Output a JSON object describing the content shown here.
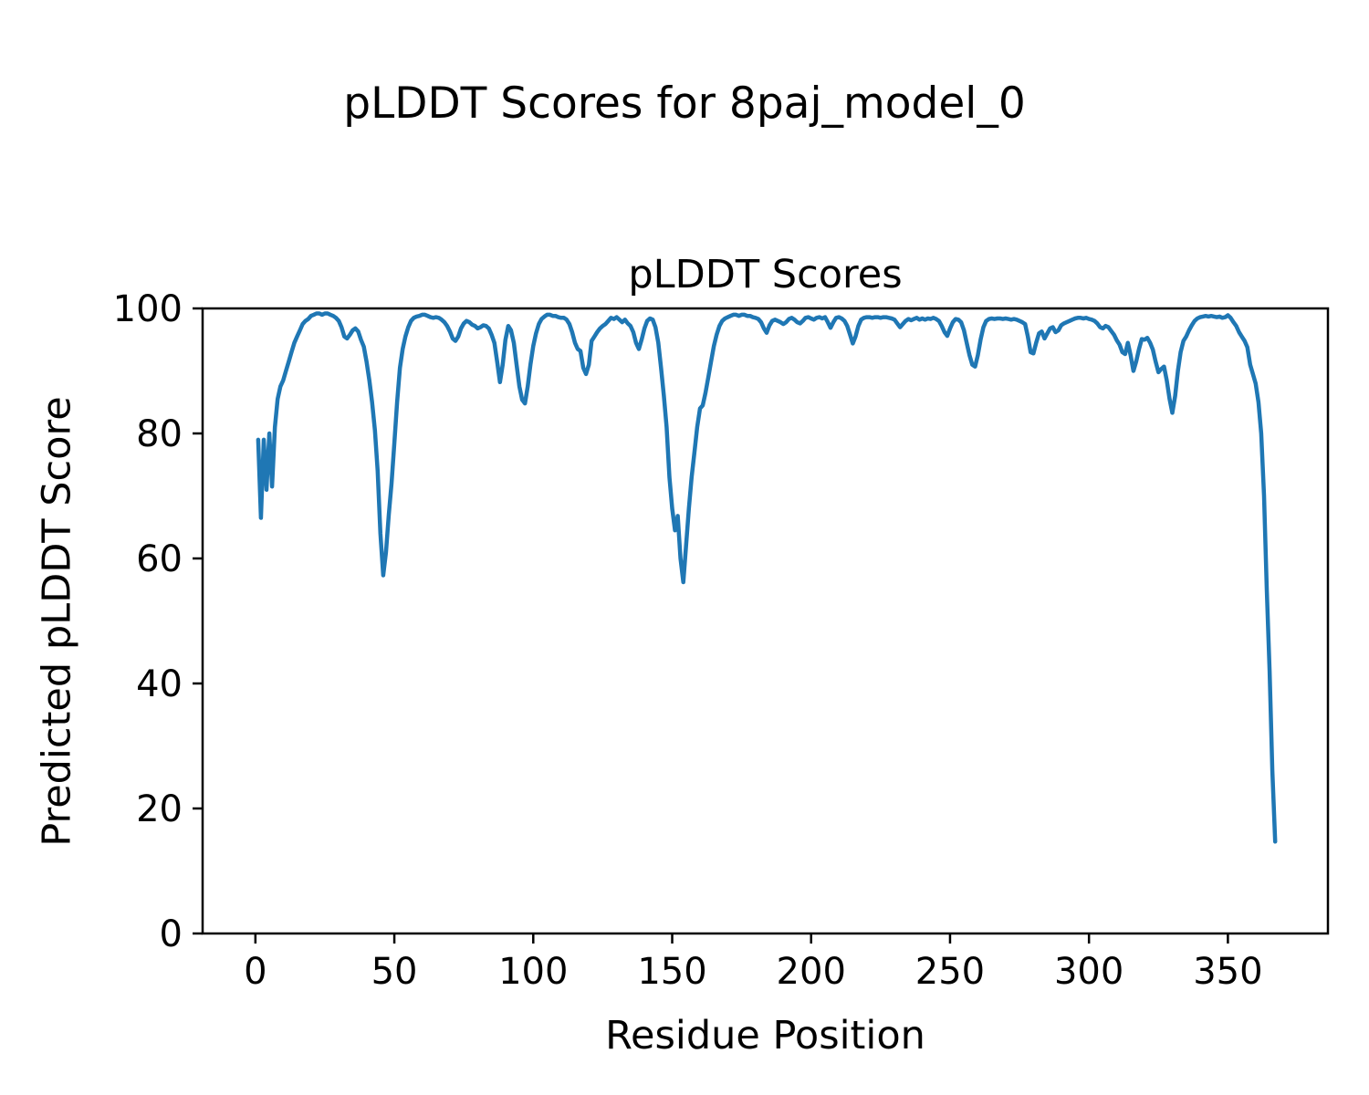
{
  "figure": {
    "suptitle": "pLDDT Scores for 8paj_model_0",
    "background_color": "#ffffff",
    "text_color": "#000000"
  },
  "chart_data": {
    "type": "line",
    "title": "pLDDT Scores",
    "xlabel": "Residue Position",
    "ylabel": "Predicted pLDDT Score",
    "xlim": [
      -19,
      386
    ],
    "ylim": [
      0,
      100
    ],
    "x_ticks": [
      0,
      50,
      100,
      150,
      200,
      250,
      300,
      350
    ],
    "y_ticks": [
      0,
      20,
      40,
      60,
      80,
      100
    ],
    "grid": false,
    "legend": "none",
    "line_color": "#1f77b4",
    "line_width": 4.5,
    "series": [
      {
        "name": "pLDDT",
        "x_start": 1,
        "x_step": 1,
        "values": [
          79,
          66.5,
          79,
          71,
          80,
          71.5,
          81,
          85.5,
          87.5,
          88.5,
          90,
          91.5,
          93,
          94.5,
          95.5,
          96.5,
          97.5,
          98,
          98.3,
          98.8,
          99,
          99.2,
          99.2,
          99,
          99.2,
          99.2,
          99,
          98.8,
          98.5,
          98,
          97,
          95.5,
          95.2,
          95.8,
          96.5,
          96.8,
          96.3,
          95,
          93.9,
          91.5,
          88.5,
          85,
          80.5,
          74,
          64,
          57.3,
          61,
          67,
          72,
          78.5,
          85,
          90.5,
          93.5,
          95.5,
          97,
          98,
          98.5,
          98.7,
          98.8,
          99,
          99,
          98.8,
          98.6,
          98.5,
          98.6,
          98.5,
          98.2,
          97.8,
          97.2,
          96.3,
          95.2,
          94.8,
          95.5,
          96.8,
          97.6,
          98,
          97.8,
          97.4,
          97.2,
          96.8,
          97,
          97.3,
          97.2,
          96.8,
          95.8,
          94.5,
          91.5,
          88.2,
          91,
          95,
          97.2,
          96.5,
          94.5,
          91,
          87.5,
          85.4,
          84.8,
          87.5,
          91,
          94,
          96,
          97.5,
          98.3,
          98.7,
          99,
          99,
          98.8,
          98.8,
          98.6,
          98.5,
          98.5,
          98.2,
          97.5,
          96.2,
          94.5,
          93.5,
          93.2,
          90.5,
          89.5,
          91,
          94.8,
          95.5,
          96.2,
          96.8,
          97.2,
          97.5,
          98,
          98.5,
          98.3,
          98.6,
          98.2,
          97.8,
          98.2,
          97.6,
          97.2,
          96.2,
          94.5,
          93.5,
          95,
          96.8,
          98,
          98.4,
          98.2,
          97,
          94.5,
          90.5,
          86,
          81,
          73,
          68,
          64.5,
          66.8,
          60,
          56.2,
          62,
          68,
          73,
          77,
          81,
          84,
          84.5,
          86.5,
          89,
          91.5,
          94,
          95.8,
          97.2,
          98,
          98.4,
          98.6,
          98.8,
          99,
          99,
          98.8,
          99,
          99,
          98.8,
          98.8,
          98.6,
          98.5,
          98.3,
          97.8,
          96.8,
          96.1,
          97.3,
          98,
          98.2,
          98,
          97.8,
          97.5,
          97.8,
          98.3,
          98.5,
          98.2,
          97.8,
          97.6,
          98,
          98.5,
          98.6,
          98.4,
          98.2,
          98.5,
          98.6,
          98.4,
          98.6,
          97.8,
          96.9,
          97.8,
          98.5,
          98.6,
          98.4,
          98,
          97.2,
          95.8,
          94.4,
          95.5,
          97.2,
          98.2,
          98.5,
          98.6,
          98.6,
          98.5,
          98.6,
          98.6,
          98.5,
          98.6,
          98.6,
          98.5,
          98.4,
          98.2,
          97.6,
          97,
          97.5,
          98,
          98.3,
          98.1,
          98.3,
          98.5,
          98.2,
          98.4,
          98.2,
          98.4,
          98.3,
          98.5,
          98.3,
          98,
          97.2,
          96.2,
          95.6,
          96.8,
          97.8,
          98.3,
          98.2,
          97.8,
          96.5,
          94.5,
          92.5,
          91,
          90.7,
          92.5,
          95,
          97,
          98,
          98.3,
          98.4,
          98.3,
          98.4,
          98.4,
          98.3,
          98.4,
          98.3,
          98.2,
          98.3,
          98.2,
          98,
          97.8,
          97.5,
          95.5,
          93,
          92.8,
          94.5,
          96,
          96.3,
          95.2,
          96,
          96.8,
          97,
          96.2,
          96.5,
          97.3,
          97.6,
          97.8,
          98,
          98.2,
          98.4,
          98.5,
          98.5,
          98.4,
          98.5,
          98.3,
          98.2,
          98,
          97.6,
          97,
          96.8,
          97.2,
          97,
          96.4,
          95.8,
          94.9,
          94.2,
          93,
          92.7,
          94.5,
          92.5,
          90,
          91.5,
          93.5,
          95.1,
          95,
          95.3,
          94.5,
          93.4,
          91.5,
          89.8,
          90.3,
          90.7,
          88.5,
          85.5,
          83.3,
          86,
          90,
          93,
          94.8,
          95.5,
          96.5,
          97.3,
          98,
          98.4,
          98.6,
          98.7,
          98.8,
          98.7,
          98.8,
          98.7,
          98.6,
          98.7,
          98.5,
          98.6,
          98.9,
          98.5,
          97.8,
          97.2,
          96.2,
          95.5,
          94.8,
          93.8,
          91,
          89.5,
          88,
          85,
          80,
          70,
          55,
          42,
          26,
          14.7
        ]
      }
    ]
  }
}
